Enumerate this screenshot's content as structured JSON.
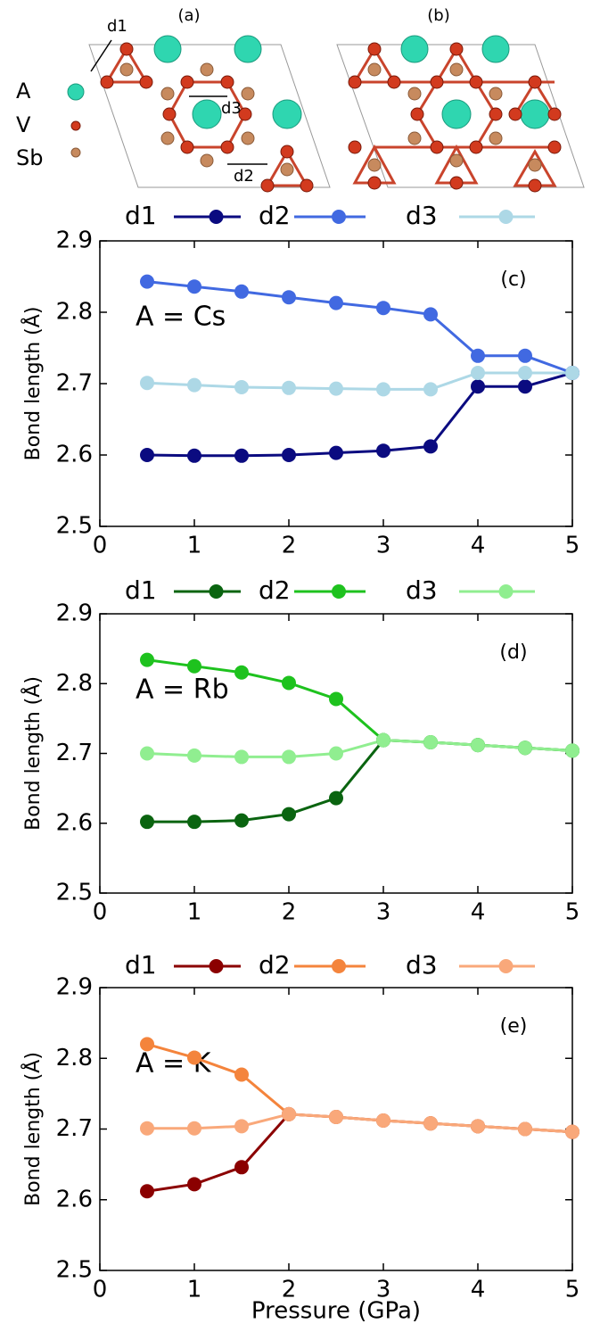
{
  "structure": {
    "panels": [
      "(a)",
      "(b)"
    ],
    "legend": [
      "A",
      "V",
      "Sb"
    ],
    "bonds": [
      "d1",
      "d3",
      "d2"
    ]
  },
  "chart_data": [
    {
      "type": "line",
      "panel_label": "(c)",
      "annotation": "A = Cs",
      "ylabel": "Bond length (Å)",
      "x": [
        0.5,
        1,
        1.5,
        2,
        2.5,
        3,
        3.5,
        4,
        4.5,
        5
      ],
      "series": [
        {
          "name": "d1",
          "color": "#0b0b80",
          "values": [
            2.6,
            2.599,
            2.599,
            2.6,
            2.603,
            2.606,
            2.612,
            2.696,
            2.696,
            2.715
          ]
        },
        {
          "name": "d2",
          "color": "#4169e1",
          "values": [
            2.843,
            2.836,
            2.829,
            2.821,
            2.813,
            2.806,
            2.797,
            2.739,
            2.739,
            2.715
          ]
        },
        {
          "name": "d3",
          "color": "#add8e6",
          "values": [
            2.701,
            2.698,
            2.695,
            2.694,
            2.693,
            2.692,
            2.692,
            2.715,
            2.715,
            2.715
          ]
        }
      ],
      "xlim": [
        0,
        5
      ],
      "xticks": [
        0,
        1,
        2,
        3,
        4,
        5
      ],
      "ylim": [
        2.5,
        2.9
      ],
      "yticks": [
        2.5,
        2.6,
        2.7,
        2.8,
        2.9
      ]
    },
    {
      "type": "line",
      "panel_label": "(d)",
      "annotation": "A = Rb",
      "ylabel": "Bond length (Å)",
      "x": [
        0.5,
        1,
        1.5,
        2,
        2.5,
        3,
        3.5,
        4,
        4.5,
        5
      ],
      "series": [
        {
          "name": "d1",
          "color": "#0a6410",
          "values": [
            2.602,
            2.602,
            2.604,
            2.613,
            2.636,
            2.719,
            2.716,
            2.712,
            2.708,
            2.704
          ]
        },
        {
          "name": "d2",
          "color": "#1ec21e",
          "values": [
            2.834,
            2.825,
            2.816,
            2.801,
            2.778,
            2.719,
            2.716,
            2.712,
            2.708,
            2.704
          ]
        },
        {
          "name": "d3",
          "color": "#90ee90",
          "values": [
            2.7,
            2.697,
            2.695,
            2.695,
            2.7,
            2.719,
            2.716,
            2.712,
            2.708,
            2.704
          ]
        }
      ],
      "xlim": [
        0,
        5
      ],
      "xticks": [
        0,
        1,
        2,
        3,
        4,
        5
      ],
      "ylim": [
        2.5,
        2.9
      ],
      "yticks": [
        2.5,
        2.6,
        2.7,
        2.8,
        2.9
      ]
    },
    {
      "type": "line",
      "panel_label": "(e)",
      "annotation": "A = K",
      "ylabel": "Bond length (Å)",
      "xlabel": "Pressure (GPa)",
      "x": [
        0.5,
        1,
        1.5,
        2,
        2.5,
        3,
        3.5,
        4,
        4.5,
        5
      ],
      "series": [
        {
          "name": "d1",
          "color": "#8b0000",
          "values": [
            2.612,
            2.622,
            2.646,
            2.721,
            2.717,
            2.712,
            2.708,
            2.704,
            2.7,
            2.696
          ]
        },
        {
          "name": "d2",
          "color": "#f4843c",
          "values": [
            2.82,
            2.801,
            2.777,
            2.721,
            2.717,
            2.712,
            2.708,
            2.704,
            2.7,
            2.696
          ]
        },
        {
          "name": "d3",
          "color": "#f9a87a",
          "values": [
            2.701,
            2.701,
            2.704,
            2.721,
            2.717,
            2.712,
            2.708,
            2.704,
            2.7,
            2.696
          ]
        }
      ],
      "xlim": [
        0,
        5
      ],
      "xticks": [
        0,
        1,
        2,
        3,
        4,
        5
      ],
      "ylim": [
        2.5,
        2.9
      ],
      "yticks": [
        2.5,
        2.6,
        2.7,
        2.8,
        2.9
      ]
    }
  ]
}
